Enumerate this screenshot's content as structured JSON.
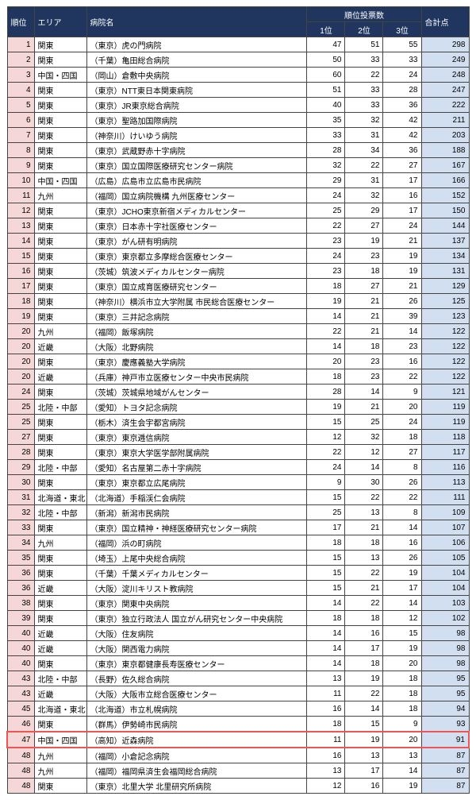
{
  "headers": {
    "rank": "順位",
    "area": "エリア",
    "name": "病院名",
    "voteGroup": "順位投票数",
    "v1": "1位",
    "v2": "2位",
    "v3": "3位",
    "total": "合計点"
  },
  "highlightRow": 46,
  "rows": [
    {
      "rank": 1,
      "area": "関東",
      "name": "（東京）虎の門病院",
      "v1": 47,
      "v2": 51,
      "v3": 55,
      "total": 298
    },
    {
      "rank": 2,
      "area": "関東",
      "name": "（千葉）亀田総合病院",
      "v1": 50,
      "v2": 33,
      "v3": 33,
      "total": 249
    },
    {
      "rank": 3,
      "area": "中国・四国",
      "name": "（岡山）倉敷中央病院",
      "v1": 60,
      "v2": 22,
      "v3": 24,
      "total": 248
    },
    {
      "rank": 4,
      "area": "関東",
      "name": "（東京）NTT東日本関東病院",
      "v1": 51,
      "v2": 33,
      "v3": 28,
      "total": 247
    },
    {
      "rank": 5,
      "area": "関東",
      "name": "（東京）JR東京総合病院",
      "v1": 40,
      "v2": 33,
      "v3": 36,
      "total": 222
    },
    {
      "rank": 6,
      "area": "関東",
      "name": "（東京）聖路加国際病院",
      "v1": 35,
      "v2": 32,
      "v3": 42,
      "total": 211
    },
    {
      "rank": 7,
      "area": "関東",
      "name": "（神奈川）けいゆう病院",
      "v1": 33,
      "v2": 31,
      "v3": 42,
      "total": 203
    },
    {
      "rank": 8,
      "area": "関東",
      "name": "（東京）武蔵野赤十字病院",
      "v1": 28,
      "v2": 34,
      "v3": 36,
      "total": 188
    },
    {
      "rank": 9,
      "area": "関東",
      "name": "（東京）国立国際医療研究センター病院",
      "v1": 32,
      "v2": 22,
      "v3": 27,
      "total": 167
    },
    {
      "rank": 10,
      "area": "中国・四国",
      "name": "（広島）広島市立広島市民病院",
      "v1": 29,
      "v2": 31,
      "v3": 17,
      "total": 166
    },
    {
      "rank": 11,
      "area": "九州",
      "name": "（福岡）国立病院機構 九州医療センター",
      "v1": 24,
      "v2": 32,
      "v3": 16,
      "total": 152
    },
    {
      "rank": 12,
      "area": "関東",
      "name": "（東京）JCHO東京新宿メディカルセンター",
      "v1": 25,
      "v2": 29,
      "v3": 17,
      "total": 150
    },
    {
      "rank": 13,
      "area": "関東",
      "name": "（東京）日本赤十字社医療センター",
      "v1": 22,
      "v2": 27,
      "v3": 24,
      "total": 144
    },
    {
      "rank": 14,
      "area": "関東",
      "name": "（東京）がん研有明病院",
      "v1": 23,
      "v2": 19,
      "v3": 21,
      "total": 137
    },
    {
      "rank": 15,
      "area": "関東",
      "name": "（東京）東京都立多摩総合医療センター",
      "v1": 24,
      "v2": 23,
      "v3": 19,
      "total": 134
    },
    {
      "rank": 16,
      "area": "関東",
      "name": "（茨城）筑波メディカルセンター病院",
      "v1": 23,
      "v2": 18,
      "v3": 19,
      "total": 131
    },
    {
      "rank": 17,
      "area": "関東",
      "name": "（東京）国立成育医療研究センター",
      "v1": 18,
      "v2": 27,
      "v3": 21,
      "total": 129
    },
    {
      "rank": 18,
      "area": "関東",
      "name": "（神奈川）横浜市立大学附属 市民総合医療センター",
      "v1": 19,
      "v2": 21,
      "v3": 26,
      "total": 125
    },
    {
      "rank": 19,
      "area": "関東",
      "name": "（東京）三井記念病院",
      "v1": 14,
      "v2": 21,
      "v3": 39,
      "total": 123
    },
    {
      "rank": 20,
      "area": "九州",
      "name": "（福岡）飯塚病院",
      "v1": 22,
      "v2": 21,
      "v3": 14,
      "total": 122
    },
    {
      "rank": 20,
      "area": "近畿",
      "name": "（大阪）北野病院",
      "v1": 14,
      "v2": 18,
      "v3": 23,
      "total": 122
    },
    {
      "rank": 20,
      "area": "関東",
      "name": "（東京）慶應義塾大学病院",
      "v1": 20,
      "v2": 23,
      "v3": 16,
      "total": 122
    },
    {
      "rank": 20,
      "area": "近畿",
      "name": "（兵庫）神戸市立医療センター中央市民病院",
      "v1": 18,
      "v2": 23,
      "v3": 22,
      "total": 122
    },
    {
      "rank": 24,
      "area": "関東",
      "name": "（茨城）茨城県地域がんセンター",
      "v1": 28,
      "v2": 14,
      "v3": 9,
      "total": 121
    },
    {
      "rank": 25,
      "area": "北陸・中部",
      "name": "（愛知）トヨタ記念病院",
      "v1": 19,
      "v2": 21,
      "v3": 20,
      "total": 119
    },
    {
      "rank": 25,
      "area": "関東",
      "name": "（栃木）済生会宇都宮病院",
      "v1": 15,
      "v2": 25,
      "v3": 24,
      "total": 119
    },
    {
      "rank": 27,
      "area": "関東",
      "name": "（東京）東京逓信病院",
      "v1": 12,
      "v2": 32,
      "v3": 18,
      "total": 118
    },
    {
      "rank": 28,
      "area": "関東",
      "name": "（東京）東京大学医学部附属病院",
      "v1": 22,
      "v2": 12,
      "v3": 27,
      "total": 117
    },
    {
      "rank": 29,
      "area": "北陸・中部",
      "name": "（愛知）名古屋第二赤十字病院",
      "v1": 24,
      "v2": 14,
      "v3": 8,
      "total": 116
    },
    {
      "rank": 30,
      "area": "関東",
      "name": "（東京）東京都立広尾病院",
      "v1": 9,
      "v2": 30,
      "v3": 26,
      "total": 113
    },
    {
      "rank": 31,
      "area": "北海道・東北",
      "name": "（北海道）手稲渓仁会病院",
      "v1": 15,
      "v2": 22,
      "v3": 22,
      "total": 111
    },
    {
      "rank": 32,
      "area": "北陸・中部",
      "name": "（新潟）新潟市民病院",
      "v1": 25,
      "v2": 13,
      "v3": 8,
      "total": 109
    },
    {
      "rank": 33,
      "area": "関東",
      "name": "（東京）国立精神・神経医療研究センター病院",
      "v1": 17,
      "v2": 21,
      "v3": 14,
      "total": 107
    },
    {
      "rank": 34,
      "area": "九州",
      "name": "（福岡）浜の町病院",
      "v1": 18,
      "v2": 18,
      "v3": 16,
      "total": 106
    },
    {
      "rank": 35,
      "area": "関東",
      "name": "（埼玉）上尾中央総合病院",
      "v1": 15,
      "v2": 13,
      "v3": 26,
      "total": 105
    },
    {
      "rank": 36,
      "area": "関東",
      "name": "（千葉）千葉メディカルセンター",
      "v1": 15,
      "v2": 22,
      "v3": 19,
      "total": 104
    },
    {
      "rank": 36,
      "area": "近畿",
      "name": "（大阪）淀川キリスト教病院",
      "v1": 15,
      "v2": 21,
      "v3": 17,
      "total": 104
    },
    {
      "rank": 38,
      "area": "関東",
      "name": "（東京）関東中央病院",
      "v1": 14,
      "v2": 22,
      "v3": 14,
      "total": 103
    },
    {
      "rank": 39,
      "area": "関東",
      "name": "（東京）独立行政法人 国立がん研究センター中央病院",
      "v1": 18,
      "v2": 18,
      "v3": 12,
      "total": 102
    },
    {
      "rank": 40,
      "area": "近畿",
      "name": "（大阪）住友病院",
      "v1": 14,
      "v2": 16,
      "v3": 15,
      "total": 98
    },
    {
      "rank": 40,
      "area": "近畿",
      "name": "（大阪）関西電力病院",
      "v1": 14,
      "v2": 17,
      "v3": 19,
      "total": 98
    },
    {
      "rank": 40,
      "area": "関東",
      "name": "（東京）東京都健康長寿医療センター",
      "v1": 14,
      "v2": 18,
      "v3": 20,
      "total": 98
    },
    {
      "rank": 43,
      "area": "北陸・中部",
      "name": "（長野）佐久総合病院",
      "v1": 13,
      "v2": 19,
      "v3": 18,
      "total": 95
    },
    {
      "rank": 43,
      "area": "近畿",
      "name": "（大阪）大阪市立総合医療センター",
      "v1": 11,
      "v2": 22,
      "v3": 18,
      "total": 95
    },
    {
      "rank": 45,
      "area": "北海道・東北",
      "name": "（北海道）市立札幌病院",
      "v1": 16,
      "v2": 14,
      "v3": 18,
      "total": 94
    },
    {
      "rank": 46,
      "area": "関東",
      "name": "（群馬）伊勢崎市民病院",
      "v1": 18,
      "v2": 15,
      "v3": 9,
      "total": 93
    },
    {
      "rank": 47,
      "area": "中国・四国",
      "name": "（高知）近森病院",
      "v1": 11,
      "v2": 19,
      "v3": 20,
      "total": 91
    },
    {
      "rank": 48,
      "area": "九州",
      "name": "（福岡）小倉記念病院",
      "v1": 16,
      "v2": 13,
      "v3": 13,
      "total": 87
    },
    {
      "rank": 48,
      "area": "九州",
      "name": "（福岡）福岡県済生会福岡総合病院",
      "v1": 13,
      "v2": 17,
      "v3": 14,
      "total": 87
    },
    {
      "rank": 48,
      "area": "関東",
      "name": "（東京）北里大学 北里研究所病院",
      "v1": 12,
      "v2": 16,
      "v3": 19,
      "total": 87
    }
  ]
}
